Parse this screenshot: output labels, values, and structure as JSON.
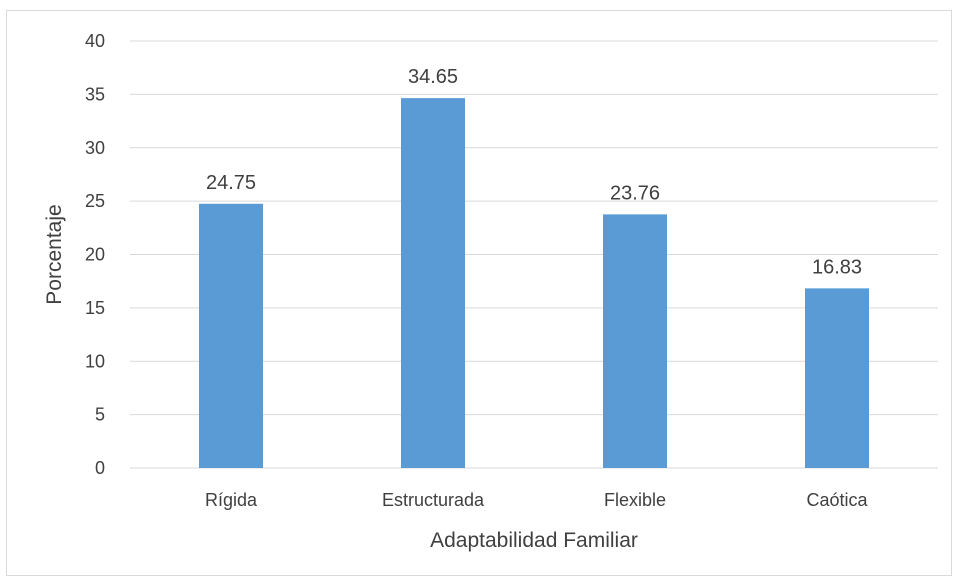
{
  "chart_data": {
    "type": "bar",
    "categories": [
      "Rígida",
      "Estructurada",
      "Flexible",
      "Caótica"
    ],
    "values": [
      24.75,
      34.65,
      23.76,
      16.83
    ],
    "data_labels": [
      "24.75",
      "34.65",
      "23.76",
      "16.83"
    ],
    "xlabel": "Adaptabilidad Familiar",
    "ylabel": "Porcentaje",
    "ylim": [
      0,
      40
    ],
    "yticks": [
      0,
      5,
      10,
      15,
      20,
      25,
      30,
      35,
      40
    ],
    "ytick_labels": [
      "0",
      "5",
      "10",
      "15",
      "20",
      "25",
      "30",
      "35",
      "40"
    ],
    "grid": true,
    "legend": "none",
    "colors": {
      "bar": "#5b9bd5",
      "grid": "#d9d9d9",
      "axis": "#d9d9d9",
      "text": "#404040"
    }
  }
}
